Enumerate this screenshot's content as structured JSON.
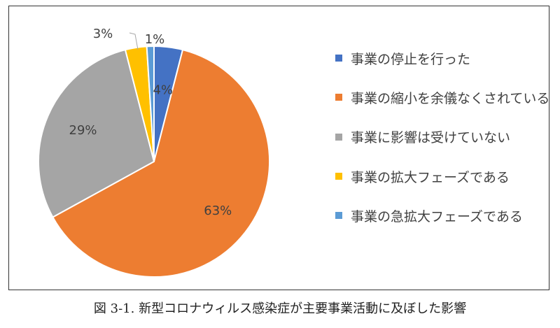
{
  "chart_data": {
    "type": "pie",
    "categories": [
      "事業の停止を行った",
      "事業の縮小を余儀なくされている",
      "事業に影響は受けていない",
      "事業の拡大フェーズである",
      "事業の急拡大フェーズである"
    ],
    "values": [
      4,
      63,
      29,
      3,
      1
    ],
    "data_labels": [
      "4%",
      "63%",
      "29%",
      "3%",
      "1%"
    ],
    "colors": [
      "#4472C4",
      "#ED7D31",
      "#A5A5A5",
      "#FFC000",
      "#5B9BD5"
    ],
    "start_angle": "12 o'clock",
    "direction": "clockwise",
    "legend_position": "right",
    "title": ""
  },
  "caption": "図 3-1.  新型コロナウィルス感染症が主要事業活動に及ぼした影響"
}
